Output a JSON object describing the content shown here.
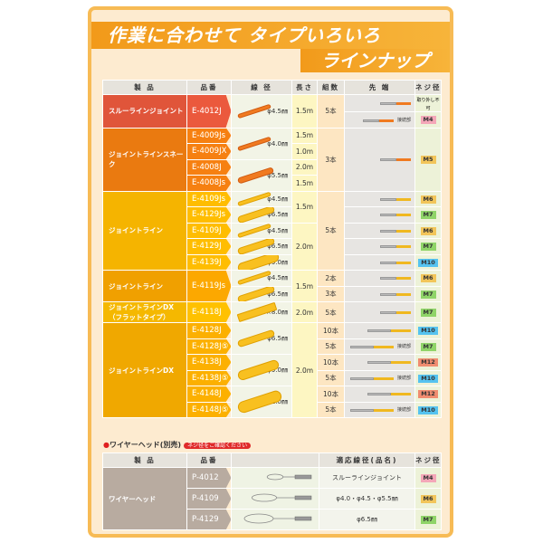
{
  "title": {
    "line1": "作業に合わせて タイプいろいろ",
    "line2": "ラインナップ"
  },
  "headers": {
    "product": "製 品",
    "part": "品番",
    "diameter": "線 径",
    "length": "長さ",
    "count": "組数",
    "tip": "先 端",
    "thread": "ネジ径"
  },
  "tip_labels": {
    "connection": "接続部",
    "not_removable": "取り外し不可"
  },
  "groups": [
    {
      "name": "スルーラインジョイント",
      "color": "#e0553a"
    },
    {
      "name": "ジョイントラインスネーク",
      "color": "#ea7a10"
    },
    {
      "name": "ジョイントライン",
      "color": "#f5b400"
    },
    {
      "name": "ジョイントライン",
      "color": "#f0a000"
    },
    {
      "name": "ジョイントラインDX（フラットタイプ）",
      "color": "#f5b800"
    },
    {
      "name": "ジョイントラインDX",
      "color": "#f0a800"
    }
  ],
  "rows": [
    {
      "part": "E-4012J",
      "diameter": "φ4.5㎜",
      "length": "1.5m",
      "count": "5本",
      "thread": ""
    },
    {
      "thread": "M4"
    },
    {
      "part": "E-4009Js",
      "diameter": "φ4.0㎜",
      "length": "1.5m",
      "count": "3本",
      "thread": "M5"
    },
    {
      "part": "E-4009JX",
      "length": "1.0m"
    },
    {
      "part": "E-4008J",
      "diameter": "φ5.5㎜",
      "length": "2.0m"
    },
    {
      "part": "E-4008Js",
      "length": "1.5m"
    },
    {
      "part": "E-4109Js",
      "diameter": "φ4.5㎜",
      "length": "1.5m",
      "count": "5本",
      "thread": "M6"
    },
    {
      "part": "E-4129Js",
      "diameter": "φ6.5㎜",
      "thread": "M7"
    },
    {
      "part": "E-4109J",
      "diameter": "φ4.5㎜",
      "length": "2.0m",
      "thread": "M6"
    },
    {
      "part": "E-4129J",
      "diameter": "φ6.5㎜",
      "thread": "M7"
    },
    {
      "part": "E-4139J",
      "diameter": "φ9.0㎜",
      "thread": "M10"
    },
    {
      "part": "E-4119Js",
      "diameter": "φ4.5㎜",
      "length": "1.5m",
      "count": "2本",
      "thread": "M6"
    },
    {
      "diameter": "φ6.5㎜",
      "count": "3本",
      "thread": "M7"
    },
    {
      "part": "E-4118J",
      "diameter": "5.0×8.0㎜",
      "length": "2.0m",
      "count": "5本",
      "thread": "M7"
    },
    {
      "part": "E-4128J",
      "diameter": "φ6.5㎜",
      "length": "2.0m",
      "count": "10本",
      "thread": "M10"
    },
    {
      "part": "E-4128J⑤",
      "count": "5本",
      "thread": "M7"
    },
    {
      "part": "E-4138J",
      "diameter": "φ9.0㎜",
      "count": "10本",
      "thread": "M12"
    },
    {
      "part": "E-4138J⑤",
      "count": "5本",
      "thread": "M10"
    },
    {
      "part": "E-4148J",
      "diameter": "φ11.0㎜",
      "count": "10本",
      "thread": "M12"
    },
    {
      "part": "E-4148J⑤",
      "count": "5本",
      "thread": "M10"
    }
  ],
  "wire": {
    "heading": "ワイヤーヘッド(別売)",
    "note": "ネジ径をご確認ください",
    "headers": {
      "product": "製 品",
      "part": "品番",
      "fit": "適応線径(品名)",
      "thread": "ネジ径"
    },
    "product": "ワイヤーヘッド",
    "rows": [
      {
        "part": "P-4012",
        "fit": "スルーラインジョイント",
        "thread": "M4"
      },
      {
        "part": "P-4109",
        "fit": "φ4.0・φ4.5・φ5.5㎜",
        "thread": "M6"
      },
      {
        "part": "P-4129",
        "fit": "φ6.5㎜",
        "thread": "M7"
      }
    ]
  }
}
